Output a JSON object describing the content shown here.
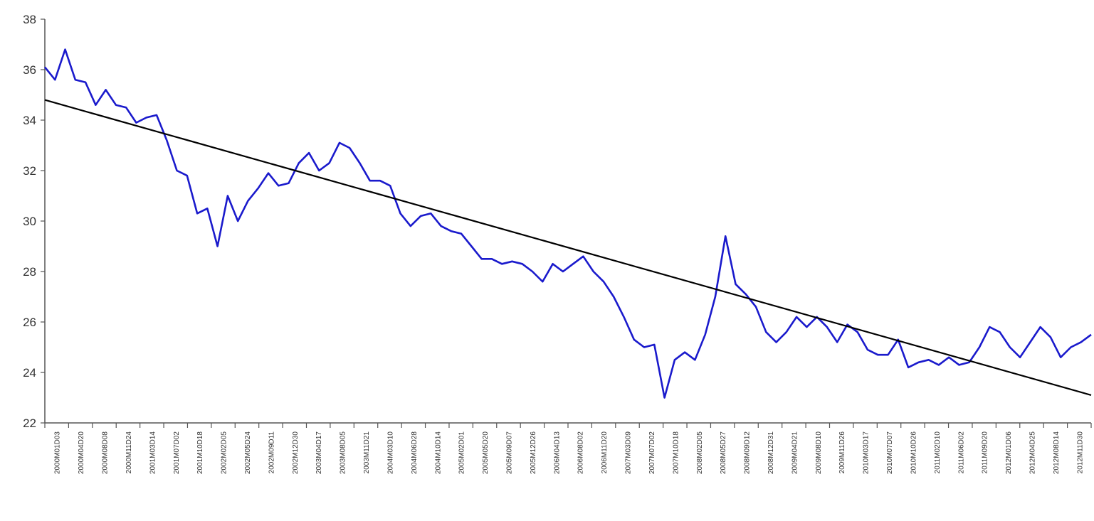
{
  "chart_data": {
    "type": "line",
    "title": "",
    "xlabel": "",
    "ylabel": "",
    "ylim": [
      22,
      38
    ],
    "yticks": [
      22,
      24,
      26,
      28,
      30,
      32,
      34,
      36,
      38
    ],
    "grid": false,
    "legend": "none",
    "x_tick_labels": [
      "2000M01D03",
      "2000M04D20",
      "2000M08D08",
      "2000M11D24",
      "2001M03D14",
      "2001M07D02",
      "2001M10D18",
      "2002M02D05",
      "2002M05D24",
      "2002M09D11",
      "2002M12D30",
      "2003M04D17",
      "2003M08D05",
      "2003M11D21",
      "2004M03D10",
      "2004M06D28",
      "2004M10D14",
      "2005M02D01",
      "2005M05D20",
      "2005M09D07",
      "2005M12D26",
      "2006M04D13",
      "2006M08D02",
      "2006M11D20",
      "2007M03D09",
      "2007M07D02",
      "2007M10D18",
      "2008M02D05",
      "2008M05D27",
      "2008M09D12",
      "2008M12D31",
      "2009M04D21",
      "2009M08D10",
      "2009M11D26",
      "2010M03D17",
      "2010M07D07",
      "2010M10D26",
      "2011M02D10",
      "2011M06D02",
      "2011M09D20",
      "2012M01D06",
      "2012M04D25",
      "2012M08D14",
      "2012M11D30"
    ],
    "series": [
      {
        "color": "#1a1acc",
        "values": [
          36.1,
          35.6,
          36.8,
          35.6,
          35.5,
          34.6,
          35.2,
          34.6,
          34.5,
          33.9,
          34.1,
          34.2,
          33.2,
          32.0,
          31.8,
          30.3,
          30.5,
          29.0,
          31.0,
          30.0,
          30.8,
          31.3,
          31.9,
          31.4,
          31.5,
          32.3,
          32.7,
          32.0,
          32.3,
          33.1,
          32.9,
          32.3,
          31.6,
          31.6,
          31.4,
          30.3,
          29.8,
          30.2,
          30.3,
          29.8,
          29.6,
          29.5,
          29.0,
          28.5,
          28.5,
          28.3,
          28.4,
          28.3,
          28.0,
          27.6,
          28.3,
          28.0,
          28.3,
          28.6,
          28.0,
          27.6,
          27.0,
          26.2,
          25.3,
          25.0,
          25.1,
          23.0,
          24.5,
          24.8,
          24.5,
          25.5,
          27.0,
          29.4,
          27.5,
          27.1,
          26.6,
          25.6,
          25.2,
          25.6,
          26.2,
          25.8,
          26.2,
          25.8,
          25.2,
          25.9,
          25.6,
          24.9,
          24.7,
          24.7,
          25.3,
          24.2,
          24.4,
          24.5,
          24.3,
          24.6,
          24.3,
          24.4,
          25.0,
          25.8,
          25.6,
          25.0,
          24.6,
          25.2,
          25.8,
          25.4,
          24.6,
          25.0,
          25.2,
          25.5
        ]
      },
      {
        "color": "#000000",
        "values": [
          34.8,
          23.1
        ]
      }
    ]
  }
}
